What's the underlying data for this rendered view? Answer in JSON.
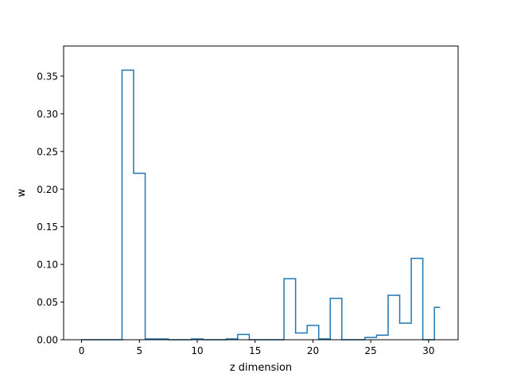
{
  "chart_data": {
    "type": "step",
    "title": "",
    "xlabel": "z dimension",
    "ylabel": "w",
    "xlim": [
      -1.55,
      32.55
    ],
    "ylim": [
      0,
      0.39
    ],
    "grid": false,
    "legend": "none",
    "line_color": "#1f77b4",
    "x_ticks": [
      0,
      5,
      10,
      15,
      20,
      25,
      30
    ],
    "x_tick_labels": [
      "0",
      "5",
      "10",
      "15",
      "20",
      "25",
      "30"
    ],
    "y_ticks": [
      0,
      0.05,
      0.1,
      0.15,
      0.2,
      0.25,
      0.3,
      0.35
    ],
    "y_tick_labels": [
      "0.00",
      "0.05",
      "0.10",
      "0.15",
      "0.20",
      "0.25",
      "0.30",
      "0.35"
    ],
    "x": [
      0,
      1,
      2,
      3,
      4,
      5,
      6,
      7,
      8,
      9,
      10,
      11,
      12,
      13,
      14,
      15,
      16,
      17,
      18,
      19,
      20,
      21,
      22,
      23,
      24,
      25,
      26,
      27,
      28,
      29,
      30,
      31
    ],
    "values": [
      0,
      0,
      0,
      0,
      0.358,
      0.221,
      0.001,
      0.001,
      0,
      0,
      0.001,
      0,
      0,
      0.001,
      0.007,
      0,
      0,
      0,
      0.081,
      0.009,
      0.019,
      0.001,
      0.055,
      0,
      0,
      0.003,
      0.006,
      0.059,
      0.022,
      0.108,
      0,
      0.043
    ]
  }
}
